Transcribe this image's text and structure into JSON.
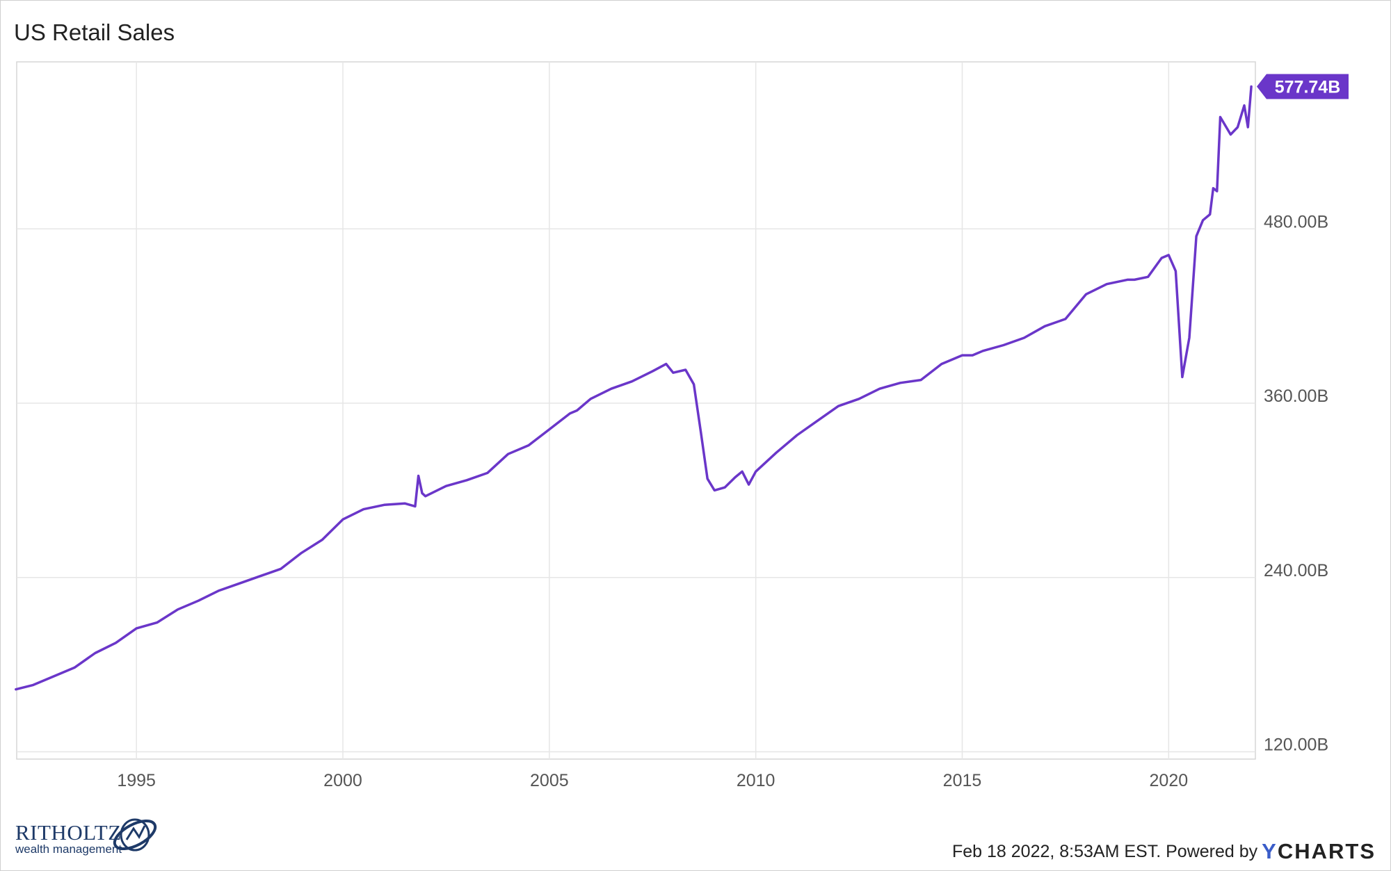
{
  "chart_data": {
    "type": "line",
    "title": "US Retail Sales",
    "x_ticks": [
      "1995",
      "2000",
      "2005",
      "2010",
      "2015",
      "2020"
    ],
    "y_ticks": [
      "120.00B",
      "240.00B",
      "360.00B",
      "480.00B"
    ],
    "ylim": [
      115,
      595
    ],
    "y_unit": "B",
    "grid": true,
    "line_color": "#6a36c9",
    "last_value_label": "577.74B",
    "series": [
      {
        "x": [
          1992.08,
          1992.5,
          1993.0,
          1993.5,
          1994.0,
          1994.5,
          1995.0,
          1995.5,
          1996.0,
          1996.5,
          1997.0,
          1997.5,
          1998.0,
          1998.5,
          1999.0,
          1999.5,
          2000.0,
          2000.5,
          2001.0,
          2001.5,
          2001.75,
          2001.83,
          2001.92,
          2002.0,
          2002.5,
          2003.0,
          2003.5,
          2004.0,
          2004.5,
          2005.0,
          2005.5,
          2005.67,
          2006.0,
          2006.5,
          2007.0,
          2007.5,
          2007.83,
          2008.0,
          2008.3,
          2008.5,
          2008.67,
          2008.83,
          2009.0,
          2009.25,
          2009.5,
          2009.67,
          2009.83,
          2010.0,
          2010.5,
          2011.0,
          2011.5,
          2012.0,
          2012.5,
          2013.0,
          2013.5,
          2014.0,
          2014.5,
          2015.0,
          2015.25,
          2015.5,
          2016.0,
          2016.5,
          2017.0,
          2017.5,
          2018.0,
          2018.5,
          2019.0,
          2019.17,
          2019.5,
          2019.83,
          2020.0,
          2020.17,
          2020.33,
          2020.5,
          2020.67,
          2020.83,
          2021.0,
          2021.08,
          2021.17,
          2021.25,
          2021.5,
          2021.67,
          2021.83,
          2021.92,
          2022.0
        ],
        "y": [
          163,
          166,
          172,
          178,
          188,
          195,
          205,
          209,
          218,
          224,
          231,
          236,
          241,
          246,
          257,
          266,
          280,
          287,
          290,
          291,
          289,
          310,
          298,
          296,
          303,
          307,
          312,
          325,
          331,
          342,
          353,
          355,
          363,
          370,
          375,
          382,
          387,
          381,
          383,
          373,
          340,
          308,
          300,
          302,
          309,
          313,
          304,
          313,
          326,
          338,
          348,
          358,
          363,
          370,
          374,
          376,
          387,
          393,
          393,
          396,
          400,
          405,
          413,
          418,
          435,
          442,
          445,
          445,
          447,
          460,
          462,
          451,
          378,
          405,
          475,
          486,
          490,
          508,
          506,
          557,
          545,
          550,
          565,
          550,
          578
        ]
      }
    ]
  },
  "footer": {
    "timestamp": "Feb 18 2022, 8:53AM EST. Powered by",
    "brand_y": "Y",
    "brand_rest": "CHARTS"
  },
  "logo": {
    "name": "RITHOLTZ",
    "tagline": "wealth management"
  }
}
